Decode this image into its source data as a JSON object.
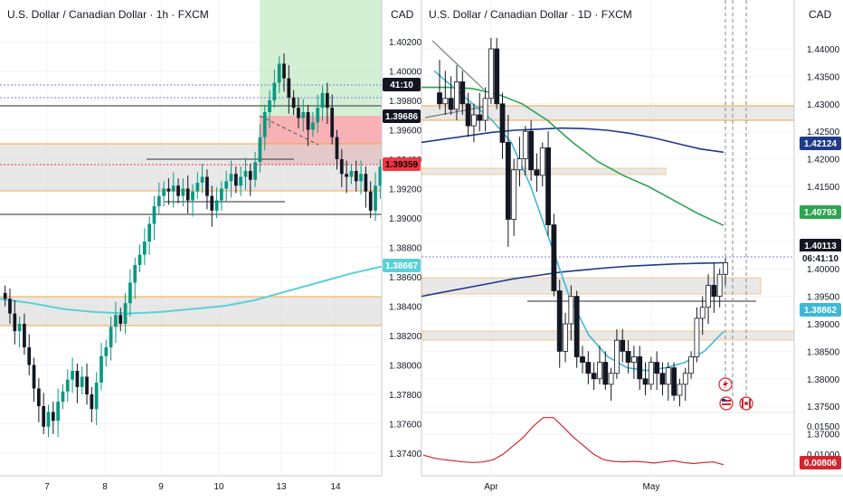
{
  "left_panel": {
    "title": "U.S. Dollar / Canadian Dollar · 1h · FXCM",
    "currency": "CAD",
    "price_ticks": [
      "1.40200",
      "1.40000",
      "1.39800",
      "1.39600",
      "1.39400",
      "1.39200",
      "1.39000",
      "1.38800",
      "1.38600",
      "1.38400",
      "1.38200",
      "1.38000",
      "1.37800",
      "1.37600",
      "1.37400"
    ],
    "x_ticks": [
      "7",
      "8",
      "9",
      "10",
      "13",
      "14"
    ],
    "price_tags": [
      {
        "label": "41:10",
        "bg": "#131722",
        "fg": "#ffffff"
      },
      {
        "label": "1.39686",
        "bg": "#131722",
        "fg": "#ffffff"
      },
      {
        "label": "1.39359",
        "bg": "#f23645",
        "fg": "#000000"
      },
      {
        "label": "1.38667",
        "bg": "#5ad0d8",
        "fg": "#ffffff"
      }
    ]
  },
  "right_panel": {
    "title": "U.S. Dollar / Canadian Dollar · 1D · FXCM",
    "currency": "CAD",
    "price_ticks": [
      "1.44000",
      "1.43500",
      "1.43000",
      "1.42500",
      "1.42000",
      "1.41500",
      "1.41000",
      "1.40500",
      "1.40000",
      "1.39500",
      "1.39000",
      "1.38500",
      "1.38000",
      "1.37500",
      "1.37000"
    ],
    "osc_ticks": [
      "0.01500",
      "0.01000"
    ],
    "x_ticks": [
      "Apr",
      "May"
    ],
    "price_tags": [
      {
        "label": "1.42124",
        "bg": "#1e3a8a",
        "fg": "#ffffff"
      },
      {
        "label": "1.40793",
        "bg": "#2ea44f",
        "fg": "#ffffff"
      },
      {
        "label": "1.40113",
        "bg": "#131722",
        "fg": "#ffffff"
      },
      {
        "label": "06:41:10",
        "bg": "#ffffff",
        "fg": "#131722"
      },
      {
        "label": "1.38862",
        "bg": "#3fb8d8",
        "fg": "#ffffff"
      },
      {
        "label": "0.00806",
        "bg": "#d3262e",
        "fg": "#ffffff"
      }
    ]
  },
  "chart_data": [
    {
      "type": "candlestick",
      "title": "U.S. Dollar / Canadian Dollar · 1h · FXCM",
      "ylabel": "CAD",
      "ylim": [
        1.3727,
        1.405
      ],
      "x_tick_labels": [
        "7",
        "8",
        "9",
        "10",
        "13",
        "14"
      ],
      "closes": [
        1.3845,
        1.3835,
        1.3823,
        1.3828,
        1.3812,
        1.38,
        1.3784,
        1.3772,
        1.3758,
        1.3768,
        1.3762,
        1.3775,
        1.3782,
        1.379,
        1.3796,
        1.3785,
        1.3792,
        1.378,
        1.377,
        1.3788,
        1.3806,
        1.3812,
        1.3826,
        1.3834,
        1.3828,
        1.3842,
        1.3856,
        1.3868,
        1.3875,
        1.3884,
        1.3896,
        1.3908,
        1.3915,
        1.392,
        1.3918,
        1.3922,
        1.3915,
        1.392,
        1.3912,
        1.3918,
        1.3924,
        1.3928,
        1.3915,
        1.3905,
        1.3912,
        1.392,
        1.3925,
        1.393,
        1.3922,
        1.3928,
        1.3932,
        1.3926,
        1.3938,
        1.3955,
        1.3972,
        1.398,
        1.3992,
        1.4005,
        1.3995,
        1.3982,
        1.3975,
        1.3968,
        1.3972,
        1.396,
        1.3965,
        1.3975,
        1.3985,
        1.3975,
        1.3955,
        1.394,
        1.393,
        1.3928,
        1.3932,
        1.3925,
        1.393,
        1.3918,
        1.3905,
        1.3922,
        1.3935
      ],
      "series": [
        {
          "name": "",
          "color": "#5ad0d8",
          "values": [
            1.3845,
            1.3842,
            1.3838,
            1.3836,
            1.3835,
            1.3836,
            1.3838,
            1.384,
            1.3844,
            1.385,
            1.3856,
            1.3862,
            1.3867
          ]
        }
      ],
      "horizontal_levels": [
        1.39686,
        1.39359,
        1.39,
        1.3945,
        1.3918,
        1.3845,
        1.3826
      ],
      "trade_box": {
        "entry": 1.3969,
        "take_profit": 1.405,
        "stop_loss": 1.3937
      },
      "last_price": 1.39359,
      "ma_last": 1.38667
    },
    {
      "type": "candlestick",
      "title": "U.S. Dollar / Canadian Dollar · 1D · FXCM",
      "ylabel": "CAD",
      "ylim": [
        1.365,
        1.448
      ],
      "x_tick_labels": [
        "Apr",
        "May"
      ],
      "ohlc": [
        {
          "o": 1.432,
          "h": 1.438,
          "l": 1.429,
          "c": 1.43
        },
        {
          "o": 1.43,
          "h": 1.436,
          "l": 1.428,
          "c": 1.431
        },
        {
          "o": 1.431,
          "h": 1.435,
          "l": 1.428,
          "c": 1.429
        },
        {
          "o": 1.429,
          "h": 1.437,
          "l": 1.427,
          "c": 1.434
        },
        {
          "o": 1.434,
          "h": 1.436,
          "l": 1.428,
          "c": 1.43
        },
        {
          "o": 1.43,
          "h": 1.432,
          "l": 1.424,
          "c": 1.426
        },
        {
          "o": 1.426,
          "h": 1.43,
          "l": 1.423,
          "c": 1.428
        },
        {
          "o": 1.428,
          "h": 1.432,
          "l": 1.425,
          "c": 1.427
        },
        {
          "o": 1.427,
          "h": 1.433,
          "l": 1.425,
          "c": 1.431
        },
        {
          "o": 1.431,
          "h": 1.442,
          "l": 1.43,
          "c": 1.44
        },
        {
          "o": 1.44,
          "h": 1.442,
          "l": 1.429,
          "c": 1.43
        },
        {
          "o": 1.43,
          "h": 1.432,
          "l": 1.42,
          "c": 1.423
        },
        {
          "o": 1.423,
          "h": 1.428,
          "l": 1.404,
          "c": 1.409
        },
        {
          "o": 1.409,
          "h": 1.42,
          "l": 1.406,
          "c": 1.418
        },
        {
          "o": 1.418,
          "h": 1.424,
          "l": 1.415,
          "c": 1.42
        },
        {
          "o": 1.42,
          "h": 1.426,
          "l": 1.417,
          "c": 1.425
        },
        {
          "o": 1.425,
          "h": 1.427,
          "l": 1.416,
          "c": 1.418
        },
        {
          "o": 1.418,
          "h": 1.421,
          "l": 1.414,
          "c": 1.417
        },
        {
          "o": 1.417,
          "h": 1.423,
          "l": 1.415,
          "c": 1.422
        },
        {
          "o": 1.422,
          "h": 1.425,
          "l": 1.406,
          "c": 1.408
        },
        {
          "o": 1.408,
          "h": 1.41,
          "l": 1.395,
          "c": 1.396
        },
        {
          "o": 1.396,
          "h": 1.398,
          "l": 1.382,
          "c": 1.385
        },
        {
          "o": 1.385,
          "h": 1.392,
          "l": 1.383,
          "c": 1.39
        },
        {
          "o": 1.39,
          "h": 1.397,
          "l": 1.387,
          "c": 1.395
        },
        {
          "o": 1.395,
          "h": 1.396,
          "l": 1.382,
          "c": 1.384
        },
        {
          "o": 1.384,
          "h": 1.386,
          "l": 1.381,
          "c": 1.383
        },
        {
          "o": 1.383,
          "h": 1.385,
          "l": 1.379,
          "c": 1.381
        },
        {
          "o": 1.381,
          "h": 1.383,
          "l": 1.378,
          "c": 1.38
        },
        {
          "o": 1.38,
          "h": 1.386,
          "l": 1.379,
          "c": 1.383
        },
        {
          "o": 1.383,
          "h": 1.385,
          "l": 1.378,
          "c": 1.379
        },
        {
          "o": 1.379,
          "h": 1.382,
          "l": 1.376,
          "c": 1.381
        },
        {
          "o": 1.381,
          "h": 1.389,
          "l": 1.38,
          "c": 1.387
        },
        {
          "o": 1.387,
          "h": 1.389,
          "l": 1.383,
          "c": 1.385
        },
        {
          "o": 1.385,
          "h": 1.387,
          "l": 1.381,
          "c": 1.383
        },
        {
          "o": 1.383,
          "h": 1.386,
          "l": 1.38,
          "c": 1.384
        },
        {
          "o": 1.384,
          "h": 1.386,
          "l": 1.378,
          "c": 1.38
        },
        {
          "o": 1.38,
          "h": 1.383,
          "l": 1.377,
          "c": 1.379
        },
        {
          "o": 1.379,
          "h": 1.384,
          "l": 1.378,
          "c": 1.383
        },
        {
          "o": 1.383,
          "h": 1.385,
          "l": 1.378,
          "c": 1.381
        },
        {
          "o": 1.381,
          "h": 1.383,
          "l": 1.377,
          "c": 1.379
        },
        {
          "o": 1.379,
          "h": 1.383,
          "l": 1.376,
          "c": 1.382
        },
        {
          "o": 1.382,
          "h": 1.383,
          "l": 1.376,
          "c": 1.377
        },
        {
          "o": 1.377,
          "h": 1.38,
          "l": 1.375,
          "c": 1.379
        },
        {
          "o": 1.379,
          "h": 1.382,
          "l": 1.376,
          "c": 1.381
        },
        {
          "o": 1.381,
          "h": 1.385,
          "l": 1.38,
          "c": 1.384
        },
        {
          "o": 1.384,
          "h": 1.393,
          "l": 1.383,
          "c": 1.391
        },
        {
          "o": 1.391,
          "h": 1.395,
          "l": 1.388,
          "c": 1.393
        },
        {
          "o": 1.393,
          "h": 1.399,
          "l": 1.39,
          "c": 1.397
        },
        {
          "o": 1.397,
          "h": 1.401,
          "l": 1.392,
          "c": 1.395
        },
        {
          "o": 1.395,
          "h": 1.4,
          "l": 1.393,
          "c": 1.399
        },
        {
          "o": 1.399,
          "h": 1.402,
          "l": 1.397,
          "c": 1.4011
        }
      ],
      "series": [
        {
          "name": "",
          "color": "#1e3a8a",
          "values": [
            1.423,
            1.4236,
            1.4242,
            1.4248,
            1.4252,
            1.4254,
            1.4256,
            1.4255,
            1.4252,
            1.4246,
            1.4238,
            1.4228,
            1.4218,
            1.4212
          ]
        },
        {
          "name": "",
          "color": "#2ea44f",
          "values": [
            1.433,
            1.433,
            1.4328,
            1.4318,
            1.43,
            1.427,
            1.423,
            1.4195,
            1.417,
            1.415,
            1.4125,
            1.41,
            1.4079
          ]
        },
        {
          "name": "",
          "color": "#1e3a8a",
          "values": [
            1.395,
            1.3958,
            1.3966,
            1.3974,
            1.3982,
            1.3988,
            1.3994,
            1.3998,
            1.4002,
            1.4005,
            1.4007,
            1.4009,
            1.401,
            1.4011
          ]
        },
        {
          "name": "",
          "color": "#3fb8d8",
          "values": [
            1.436,
            1.433,
            1.43,
            1.427,
            1.423,
            1.415,
            1.405,
            1.395,
            1.388,
            1.384,
            1.382,
            1.3815,
            1.382,
            1.383,
            1.385,
            1.3886
          ]
        }
      ],
      "zones": [
        [
          1.426,
          1.429
        ],
        [
          1.415,
          1.416
        ],
        [
          1.392,
          1.395
        ],
        [
          1.382,
          1.3832
        ]
      ],
      "oscillator": {
        "ylim": [
          0.0075,
          0.0185
        ],
        "values": [
          0.0098,
          0.0093,
          0.009,
          0.0088,
          0.0086,
          0.0085,
          0.0086,
          0.009,
          0.01,
          0.0115,
          0.013,
          0.015,
          0.0165,
          0.0165,
          0.0148,
          0.013,
          0.0115,
          0.01,
          0.009,
          0.0087,
          0.0086,
          0.0087,
          0.0086,
          0.0084,
          0.0086,
          0.0088,
          0.0085,
          0.0083,
          0.0085,
          0.0086,
          0.0081
        ],
        "last": 0.00806
      },
      "last_price": 1.40113
    }
  ]
}
